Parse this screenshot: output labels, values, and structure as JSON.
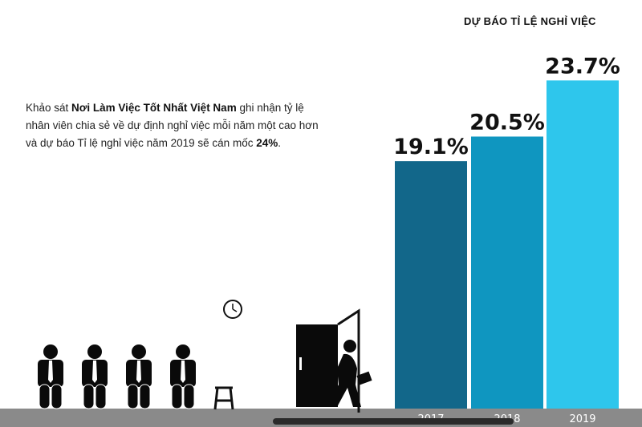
{
  "chart_data": {
    "type": "bar",
    "title": "DỰ BÁO TỈ LỆ NGHỈ VIỆC",
    "categories": [
      "2017",
      "2018",
      "2019"
    ],
    "values": [
      19.1,
      20.5,
      23.7
    ],
    "labels": [
      "19.1%",
      "20.5%",
      "23.7%"
    ],
    "colors": [
      "#12678a",
      "#0f96c0",
      "#2ec6ec"
    ],
    "ylim": [
      5,
      26
    ],
    "grid": false,
    "xlabel": "",
    "ylabel": ""
  },
  "description": {
    "p1": "Khảo sát ",
    "b1": "Nơi Làm Việc Tốt Nhất Việt Nam",
    "p2": " ghi nhận tỷ lệ nhân viên chia sẻ về dự định nghỉ việc mỗi năm một cao hơn và dự báo Tỉ lệ nghỉ việc năm 2019 sẽ cán mốc ",
    "b2": "24%",
    "p3": "."
  }
}
